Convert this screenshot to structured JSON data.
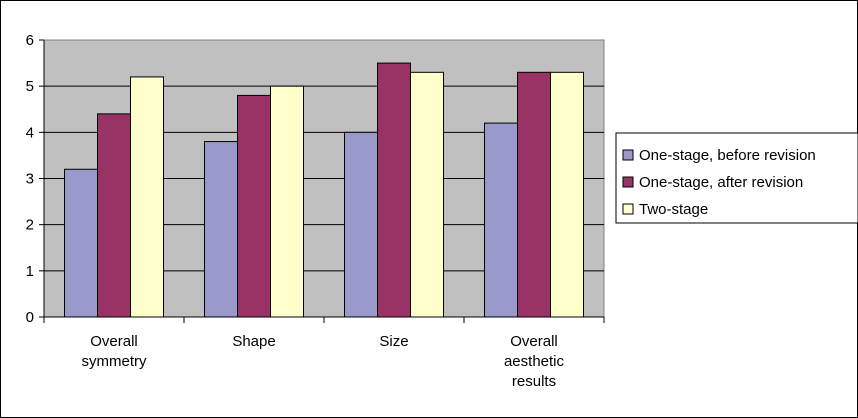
{
  "chart_data": {
    "type": "bar",
    "title": "",
    "xlabel": "",
    "ylabel": "",
    "categories": [
      [
        "Overall",
        "symmetry"
      ],
      [
        "Shape"
      ],
      [
        "Size"
      ],
      [
        "Overall",
        "aesthetic",
        "results"
      ]
    ],
    "series": [
      {
        "name": "One-stage, before revision",
        "color": "#9999cc",
        "values": [
          3.2,
          3.8,
          4.0,
          4.2
        ]
      },
      {
        "name": "One-stage, after revision",
        "color": "#993366",
        "values": [
          4.4,
          4.8,
          5.5,
          5.3
        ]
      },
      {
        "name": "Two-stage",
        "color": "#ffffcc",
        "values": [
          5.2,
          5.0,
          5.3,
          5.3
        ]
      }
    ],
    "ylim": [
      0,
      6
    ],
    "yticks": [
      "0",
      "1",
      "2",
      "3",
      "4",
      "5",
      "6"
    ],
    "grid": true,
    "plot_background": "#c0c0c0",
    "legend_position": "right"
  }
}
